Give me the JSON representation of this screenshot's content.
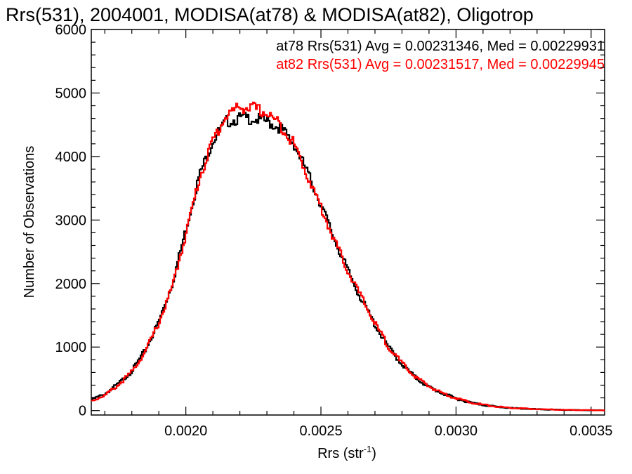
{
  "chart_data": {
    "type": "line",
    "title": "Rrs(531), 2004001, MODISA(at78) & MODISA(at82), Oligotrop",
    "xlabel": "Rrs (str",
    "xlabel_sup": "-1",
    "xlabel_close": ")",
    "ylabel": "Number of Observations",
    "xlim": [
      0.00165,
      0.00355
    ],
    "ylim": [
      -70,
      6000
    ],
    "x_ticks": [
      0.002,
      0.0025,
      0.003,
      0.0035
    ],
    "x_tick_labels": [
      "0.0020",
      "0.0025",
      "0.0030",
      "0.0035"
    ],
    "y_ticks": [
      0,
      1000,
      2000,
      3000,
      4000,
      5000,
      6000
    ],
    "y_tick_labels": [
      "0",
      "1000",
      "2000",
      "3000",
      "4000",
      "5000",
      "6000"
    ],
    "grid": false,
    "legend_position": "top-right",
    "x": [
      0.00165,
      0.0017,
      0.00175,
      0.0018,
      0.00185,
      0.0019,
      0.00195,
      0.002,
      0.00205,
      0.0021,
      0.00215,
      0.0022,
      0.00225,
      0.0023,
      0.00235,
      0.0024,
      0.00245,
      0.0025,
      0.00255,
      0.0026,
      0.00265,
      0.0027,
      0.00275,
      0.0028,
      0.00285,
      0.0029,
      0.00295,
      0.003,
      0.00305,
      0.0031,
      0.00315,
      0.0032,
      0.00325,
      0.0033,
      0.00335,
      0.0034,
      0.00345,
      0.0035,
      0.00355
    ],
    "series": [
      {
        "name": "at78",
        "color": "#000000",
        "legend": "at78 Rrs(531) Avg = 0.00231346, Med = 0.00229931",
        "values": [
          170,
          260,
          420,
          620,
          950,
          1400,
          2000,
          2850,
          3700,
          4250,
          4550,
          4600,
          4600,
          4550,
          4450,
          4200,
          3750,
          3250,
          2700,
          2200,
          1750,
          1350,
          1000,
          730,
          520,
          370,
          270,
          190,
          130,
          90,
          60,
          40,
          30,
          20,
          15,
          10,
          8,
          5,
          5
        ]
      },
      {
        "name": "at82",
        "color": "#ff0000",
        "legend": "at82 Rrs(531) Avg = 0.00231517, Med = 0.00229945",
        "values": [
          150,
          240,
          400,
          610,
          930,
          1380,
          1950,
          2780,
          3650,
          4250,
          4650,
          4780,
          4760,
          4680,
          4500,
          4200,
          3700,
          3200,
          2680,
          2200,
          1780,
          1370,
          1010,
          740,
          530,
          380,
          275,
          195,
          135,
          92,
          62,
          42,
          31,
          22,
          16,
          11,
          8,
          6,
          5
        ]
      }
    ]
  }
}
